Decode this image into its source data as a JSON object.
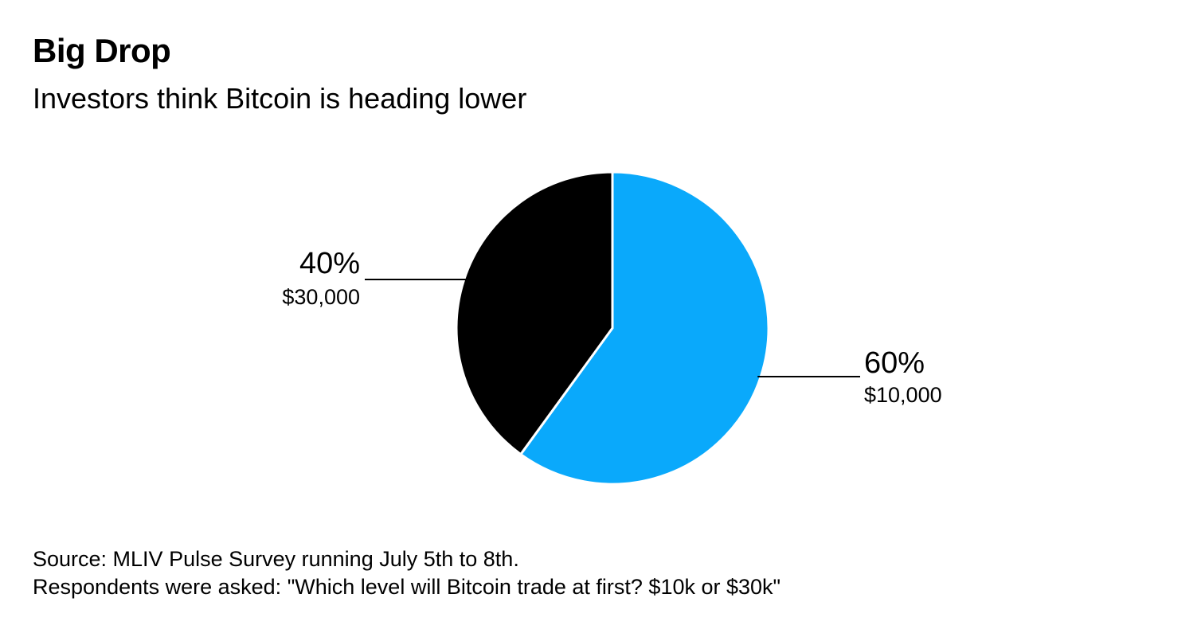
{
  "title": "Big Drop",
  "subtitle": "Investors think Bitcoin is heading lower",
  "footer": {
    "source": "Source: MLIV Pulse Survey running July 5th to 8th.",
    "note": "Respondents were asked: \"Which level will Bitcoin trade at first? $10k or $30k\""
  },
  "chart_data": {
    "type": "pie",
    "slices": [
      {
        "category": "$10,000",
        "value": 60,
        "percent_label": "60%",
        "color": "#0aa9fb"
      },
      {
        "category": "$30,000",
        "value": 40,
        "percent_label": "40%",
        "color": "#000000"
      }
    ]
  }
}
